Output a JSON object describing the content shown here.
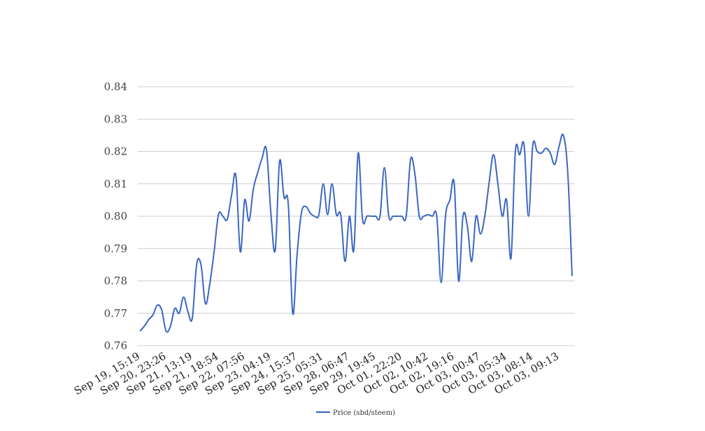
{
  "chart_data": {
    "type": "line",
    "title": "",
    "xlabel": "",
    "ylabel": "",
    "ylim": [
      0.76,
      0.84
    ],
    "yticks": [
      "0.76",
      "0.77",
      "0.78",
      "0.79",
      "0.80",
      "0.81",
      "0.82",
      "0.83",
      "0.84"
    ],
    "grid": true,
    "legend_position": "bottom",
    "x_tick_labels": [
      "Sep 19, 15:19",
      "Sep 20, 23:26",
      "Sep 21, 13:19",
      "Sep 21, 18:54",
      "Sep 22, 07:56",
      "Sep 23, 04:19",
      "Sep 24, 15:37",
      "Sep 25, 05:31",
      "Sep 28, 06:47",
      "Sep 29, 19:45",
      "Oct 01, 22:20",
      "Oct 02, 10:42",
      "Oct 02, 19:16",
      "Oct 03, 00:47",
      "Oct 03, 05:34",
      "Oct 03, 08:14",
      "Oct 03, 09:13"
    ],
    "series": [
      {
        "name": "Price (sbd/steem)",
        "color": "#3b66c4",
        "values": [
          0.7645,
          0.766,
          0.768,
          0.7695,
          0.7725,
          0.771,
          0.7645,
          0.766,
          0.7715,
          0.77,
          0.775,
          0.7705,
          0.7685,
          0.785,
          0.785,
          0.773,
          0.779,
          0.789,
          0.8005,
          0.8,
          0.799,
          0.8065,
          0.8125,
          0.789,
          0.805,
          0.7985,
          0.8085,
          0.8135,
          0.818,
          0.8205,
          0.801,
          0.7895,
          0.817,
          0.806,
          0.8035,
          0.77,
          0.788,
          0.801,
          0.803,
          0.801,
          0.8,
          0.8005,
          0.81,
          0.8005,
          0.81,
          0.8005,
          0.8005,
          0.786,
          0.8,
          0.7895,
          0.8195,
          0.799,
          0.8,
          0.8,
          0.8,
          0.8,
          0.815,
          0.8,
          0.8,
          0.8,
          0.8,
          0.8,
          0.8175,
          0.813,
          0.8,
          0.8,
          0.8005,
          0.8,
          0.8,
          0.7795,
          0.8,
          0.805,
          0.81,
          0.78,
          0.8,
          0.797,
          0.786,
          0.8,
          0.7945,
          0.8,
          0.8105,
          0.819,
          0.81,
          0.8,
          0.805,
          0.787,
          0.82,
          0.819,
          0.822,
          0.8,
          0.822,
          0.82,
          0.8195,
          0.821,
          0.8195,
          0.816,
          0.8215,
          0.825,
          0.8135,
          0.7815
        ]
      }
    ]
  }
}
